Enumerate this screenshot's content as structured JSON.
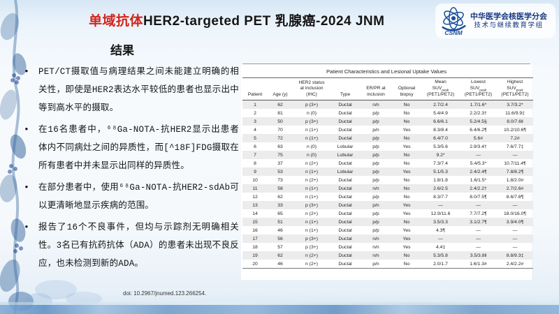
{
  "slide": {
    "title_red": "单域抗体",
    "title_black": "HER2-targeted PET 乳腺癌-2024 JNM",
    "section_heading": "结果",
    "doi": "doi: 10.2967/jnumed.123.266254."
  },
  "logo": {
    "acronym": "CSNM",
    "org_line1": "中华医学会核医学分会",
    "org_line2": "技术与继续教育学组"
  },
  "bullets": [
    "PET/CT摄取值与病理结果之间未能建立明确的相关性，即使是HER2表达水平较低的患者也显示出中等到高水平的摄取。",
    "在16名患者中，⁶⁸Ga-NOTA-抗HER2显示出患者体内不同病灶之间的异质性，而[^18F]FDG摄取在所有患者中并未显示出同样的异质性。",
    "在部分患者中，使用⁶⁸Ga-NOTA-抗HER2-sdAb可以更清晰地显示疾病的范围。",
    "报告了16个不良事件，但均与示踪剂无明确相关性。3名已有抗药抗体（ADA）的患者未出现不良反应，也未检测到新的ADA。"
  ],
  "table": {
    "title": "Patient Characteristics and Lesional Uptake Values",
    "columns": [
      [
        "Patient"
      ],
      [
        "Age (y)"
      ],
      [
        "HER2 status",
        "at inclusion",
        "(IHC)"
      ],
      [
        "Type"
      ],
      [
        "ER/PR at",
        "inclusion"
      ],
      [
        "Optional",
        "biopsy"
      ],
      [
        "Mean",
        "SUVpeak",
        "(PET1/PET2)"
      ],
      [
        "Lowest",
        "SUVpeak",
        "(PET1/PET2)"
      ],
      [
        "Highest",
        "SUVpeak",
        "(PET1/PET2)"
      ]
    ],
    "rows": [
      [
        "1",
        "62",
        "p (3+)",
        "Ductal",
        "n/n",
        "No",
        "2.7/2.4",
        "1.7/1.6*",
        "3.7/3.2*"
      ],
      [
        "2",
        "81",
        "n (0)",
        "Ductal",
        "p/p",
        "No",
        "5.4/4.9",
        "2.2/2.3†",
        "11.6/9.9‡"
      ],
      [
        "3",
        "50",
        "p (3+)",
        "Ductal",
        "p/p",
        "No",
        "6.6/6.1",
        "5.2/4.5§",
        "8.0/7.6‖"
      ],
      [
        "4",
        "70",
        "n (1+)",
        "Ductal",
        "p/n",
        "Yes",
        "8.3/8.4",
        "6.4/6.2¶",
        "10.2/10.6¶"
      ],
      [
        "5",
        "72",
        "n (1+)",
        "Ductal",
        "p/p",
        "No",
        "6.4/7.0",
        "5.6#",
        "7.2#"
      ],
      [
        "6",
        "63",
        "n (0)",
        "Lobular",
        "p/p",
        "Yes",
        "5.3/5.6",
        "2.9/3.4†",
        "7.6/7.7‡"
      ],
      [
        "7",
        "75",
        "n (0)",
        "Lobular",
        "p/p",
        "No",
        "9.2*",
        "—",
        "—"
      ],
      [
        "8",
        "37",
        "n (2+)",
        "Ductal",
        "p/p",
        "No",
        "7.3/7.4",
        "5.4/5.3*",
        "10.7/11.4¶"
      ],
      [
        "9",
        "53",
        "n (1+)",
        "Lobular",
        "p/p",
        "Yes",
        "5.1/5.3",
        "2.4/2.4¶",
        "7.8/8.2¶"
      ],
      [
        "10",
        "73",
        "n (2+)",
        "Ductal",
        "p/p",
        "No",
        "1.8/1.8",
        "1.6/1.5*",
        "1.8/2.0#"
      ],
      [
        "11",
        "58",
        "n (1+)",
        "Ductal",
        "n/n",
        "No",
        "2.6/2.5",
        "2.4/2.2†",
        "2.7/2.6#"
      ],
      [
        "12",
        "62",
        "n (1+)",
        "Ductal",
        "p/p",
        "No",
        "8.3/7.7",
        "8.0/7.5¶",
        "8.6/7.8¶"
      ],
      [
        "13",
        "33",
        "p (3+)",
        "Ductal",
        "p/n",
        "Yes",
        "—",
        "—",
        "—"
      ],
      [
        "14",
        "65",
        "n (2+)",
        "Ductal",
        "p/p",
        "Yes",
        "12.9/11.6",
        "7.7/7.2¶",
        "18.0/16.0¶"
      ],
      [
        "15",
        "51",
        "n (1+)",
        "Ductal",
        "p/p",
        "No",
        "3.5/3.3",
        "3.1/2.7¶",
        "3.9/4.0¶"
      ],
      [
        "16",
        "46",
        "n (1+)",
        "Ductal",
        "p/p",
        "Yes",
        "4.3¶",
        "—",
        "—"
      ],
      [
        "17",
        "56",
        "p (3+)",
        "Ductal",
        "n/n",
        "Yes",
        "—",
        "—",
        "—"
      ],
      [
        "18",
        "57",
        "p (3+)",
        "Ductal",
        "n/n",
        "Yes",
        "4.4‡",
        "—",
        "—"
      ],
      [
        "19",
        "62",
        "n (2+)",
        "Ductal",
        "n/n",
        "No",
        "5.3/5.8",
        "3.5/3.8‖",
        "8.8/9.3‡"
      ],
      [
        "20",
        "46",
        "n (2+)",
        "Ductal",
        "p/n",
        "No",
        "2.0/1.7",
        "1.6/1.3#",
        "2.4/2.2#"
      ]
    ]
  },
  "colors": {
    "title_red": "#d0261c",
    "logo_blue": "#1b4e9b",
    "row_shade": "#ececec",
    "watercolor_blue": "#6f9cc9"
  }
}
